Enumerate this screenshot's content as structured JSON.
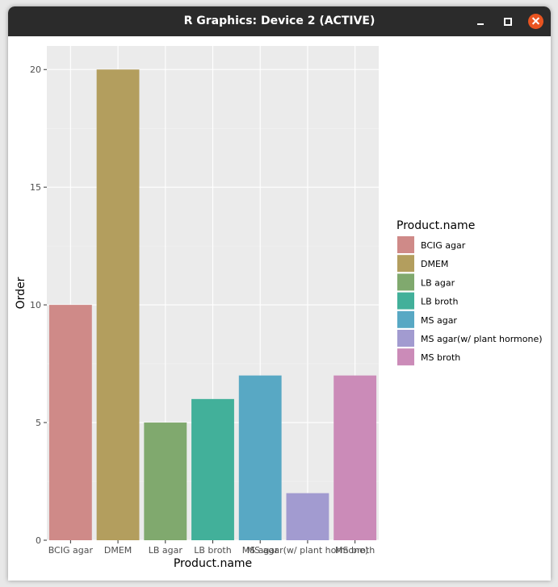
{
  "window": {
    "title": "R Graphics: Device 2 (ACTIVE)"
  },
  "chart_data": {
    "type": "bar",
    "categories": [
      "BCIG agar",
      "DMEM",
      "LB agar",
      "LB broth",
      "MS agar",
      "MS agar(w/ plant hormone)",
      "MS broth"
    ],
    "values": [
      10,
      20,
      5,
      6,
      7,
      2,
      7
    ],
    "colors": [
      "#CF8A88",
      "#B39E5E",
      "#80A96E",
      "#42B09A",
      "#58A8C4",
      "#A29BD0",
      "#CB8BB8"
    ],
    "xlabel": "Product.name",
    "ylabel": "Order",
    "ylim": [
      0,
      21
    ],
    "yticks": [
      0,
      5,
      10,
      15,
      20
    ],
    "grid": true,
    "panel_background": "#EBEBEB",
    "legend": {
      "title": "Product.name",
      "position": "right"
    }
  }
}
